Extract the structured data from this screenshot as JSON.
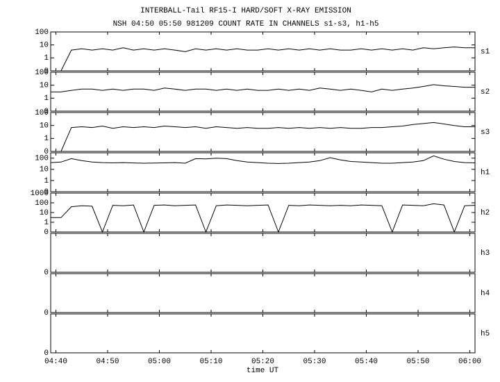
{
  "chart_data": {
    "type": "line",
    "title": "INTERBALL-Tail RF15-I HARD/SOFT X-RAY EMISSION",
    "subtitle": "NSH 04:50 05:50 981209  COUNT RATE IN CHANNELS s1-s3, h1-h5",
    "xlabel": "time UT",
    "yscale": "symlog",
    "color": "#000000",
    "xlim": [
      "04:39",
      "06:01"
    ],
    "xticks": [
      "04:40",
      "04:50",
      "05:00",
      "05:10",
      "05:20",
      "05:30",
      "05:40",
      "05:50",
      "06:00"
    ],
    "x": [
      "04:39",
      "04:41",
      "04:43",
      "04:45",
      "04:47",
      "04:49",
      "04:51",
      "04:53",
      "04:55",
      "04:57",
      "04:59",
      "05:01",
      "05:03",
      "05:05",
      "05:07",
      "05:09",
      "05:11",
      "05:13",
      "05:15",
      "05:17",
      "05:19",
      "05:21",
      "05:23",
      "05:25",
      "05:27",
      "05:29",
      "05:31",
      "05:33",
      "05:35",
      "05:37",
      "05:39",
      "05:41",
      "05:43",
      "05:45",
      "05:47",
      "05:49",
      "05:51",
      "05:53",
      "05:55",
      "05:57",
      "05:59",
      "06:01"
    ],
    "panels": [
      {
        "name": "s1",
        "ylim": [
          0,
          100
        ],
        "yticks": [
          0,
          1,
          10,
          100
        ],
        "values": [
          0,
          0,
          4,
          5,
          4,
          5,
          4,
          6,
          4,
          5,
          4,
          5,
          4,
          3,
          5,
          4,
          5,
          4,
          5,
          4,
          4,
          5,
          4,
          5,
          4,
          5,
          4,
          5,
          4,
          4,
          5,
          4,
          5,
          4,
          5,
          4,
          6,
          5,
          6,
          7,
          6,
          6
        ]
      },
      {
        "name": "s2",
        "ylim": [
          0,
          100
        ],
        "yticks": [
          0,
          1,
          10,
          100
        ],
        "values": [
          3,
          3,
          4,
          5,
          5,
          4,
          5,
          4,
          5,
          5,
          4,
          6,
          5,
          4,
          5,
          5,
          4,
          5,
          4,
          5,
          4,
          4,
          5,
          4,
          5,
          4,
          6,
          5,
          4,
          5,
          4,
          3,
          5,
          4,
          5,
          6,
          8,
          11,
          9,
          8,
          7,
          7
        ]
      },
      {
        "name": "s3",
        "ylim": [
          0,
          100
        ],
        "yticks": [
          0,
          1,
          10,
          100
        ],
        "values": [
          0,
          0,
          7,
          8,
          7,
          9,
          6,
          8,
          7,
          8,
          7,
          9,
          8,
          7,
          8,
          6,
          8,
          7,
          6,
          7,
          6,
          6,
          7,
          6,
          7,
          6,
          7,
          6,
          7,
          6,
          6,
          7,
          7,
          8,
          9,
          12,
          14,
          17,
          13,
          10,
          8,
          8
        ]
      },
      {
        "name": "h1",
        "ylim": [
          0,
          300
        ],
        "yticks": [
          0,
          1,
          10,
          100
        ],
        "values": [
          40,
          45,
          90,
          60,
          45,
          40,
          38,
          40,
          37,
          35,
          36,
          38,
          40,
          35,
          90,
          85,
          100,
          90,
          60,
          45,
          40,
          35,
          33,
          35,
          40,
          45,
          60,
          110,
          70,
          50,
          45,
          40,
          35,
          35,
          40,
          45,
          60,
          160,
          80,
          50,
          40,
          38
        ]
      },
      {
        "name": "h2",
        "ylim": [
          0,
          1000
        ],
        "yticks": [
          0,
          1,
          10,
          100,
          1000
        ],
        "values": [
          3,
          3,
          40,
          50,
          45,
          0,
          55,
          50,
          60,
          0,
          55,
          60,
          50,
          55,
          60,
          0,
          50,
          60,
          55,
          50,
          55,
          60,
          0,
          55,
          50,
          60,
          55,
          50,
          55,
          50,
          60,
          55,
          50,
          0,
          60,
          55,
          50,
          80,
          60,
          0,
          50,
          55
        ]
      },
      {
        "name": "h3",
        "ylim": [
          0,
          1
        ],
        "yticks": [
          0
        ]
      },
      {
        "name": "h4",
        "ylim": [
          0,
          1
        ],
        "yticks": [
          0
        ]
      },
      {
        "name": "h5",
        "ylim": [
          0,
          1
        ],
        "yticks": [
          0
        ]
      }
    ]
  }
}
